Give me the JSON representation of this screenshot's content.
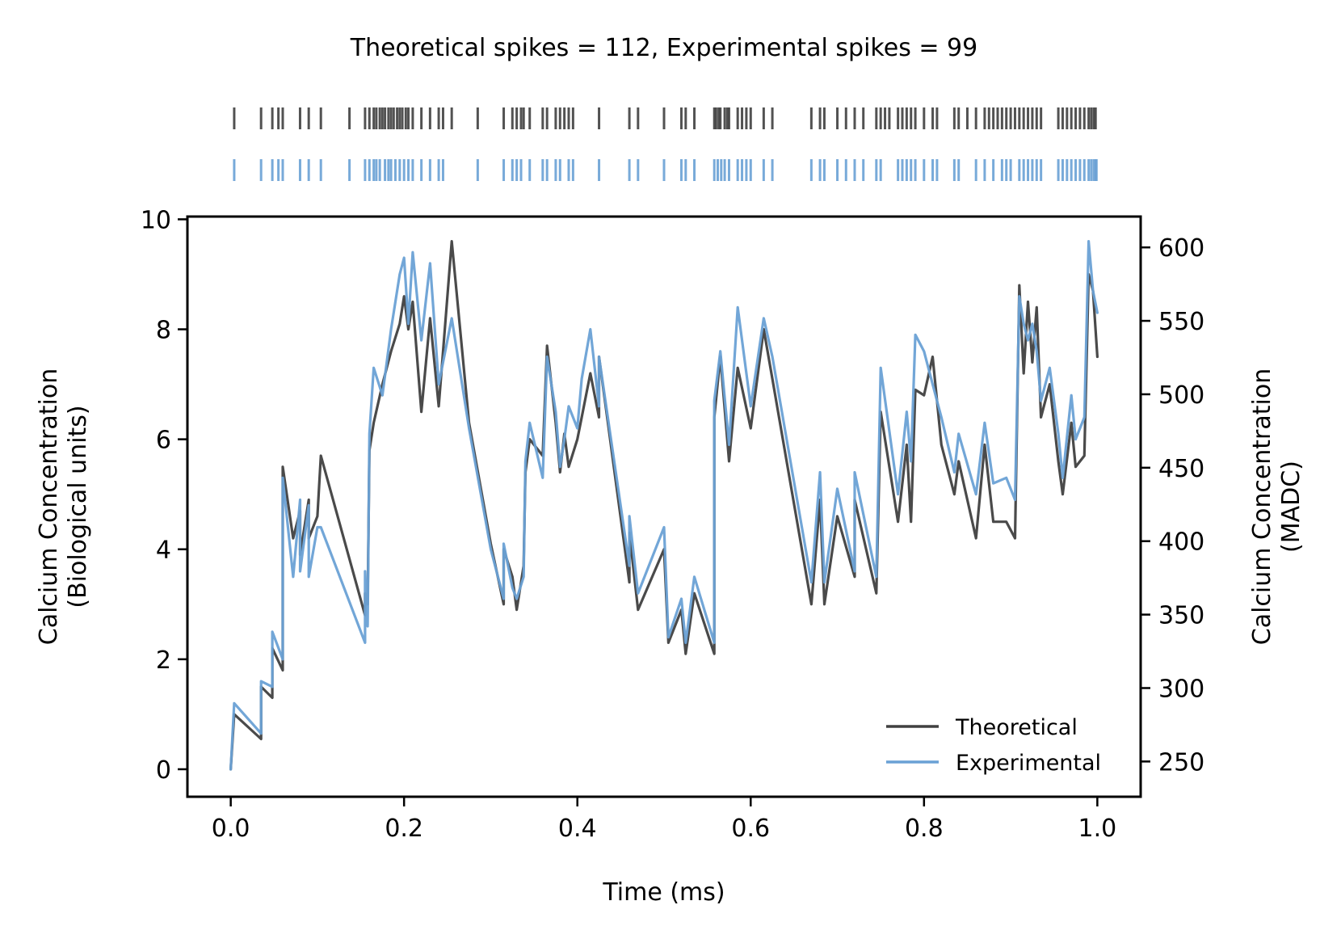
{
  "chart_data": {
    "type": "line",
    "title": "Theoretical spikes = 112, Experimental spikes = 99",
    "xlabel": "Time (ms)",
    "ylabel": [
      "Calcium Concentration",
      "(Biological units)"
    ],
    "ylabel_right": [
      "Calcium Concentration",
      "(MADC)"
    ],
    "xlim": [
      -0.05,
      1.05
    ],
    "ylim": [
      -0.5,
      10.05
    ],
    "ylim_right": [
      226,
      621
    ],
    "xticks": [
      0.0,
      0.2,
      0.4,
      0.6,
      0.8,
      1.0
    ],
    "xtick_labels": [
      "0.0",
      "0.2",
      "0.4",
      "0.6",
      "0.8",
      "1.0"
    ],
    "yticks": [
      0,
      2,
      4,
      6,
      8,
      10
    ],
    "ytick_labels": [
      "0",
      "2",
      "4",
      "6",
      "8",
      "10"
    ],
    "yticks_right": [
      250,
      300,
      350,
      400,
      450,
      500,
      550,
      600
    ],
    "ytick_labels_right": [
      "250",
      "300",
      "350",
      "400",
      "450",
      "500",
      "550",
      "600"
    ],
    "legend_placement": "lower-right",
    "series": [
      {
        "name": "Theoretical",
        "color": "#404040",
        "x": [
          0.0,
          0.004,
          0.035,
          0.035,
          0.048,
          0.048,
          0.06,
          0.06,
          0.072,
          0.08,
          0.08,
          0.09,
          0.09,
          0.1,
          0.104,
          0.104,
          0.155,
          0.155,
          0.158,
          0.16,
          0.165,
          0.175,
          0.185,
          0.195,
          0.2,
          0.205,
          0.21,
          0.22,
          0.23,
          0.24,
          0.255,
          0.255,
          0.275,
          0.3,
          0.315,
          0.315,
          0.325,
          0.33,
          0.338,
          0.34,
          0.345,
          0.36,
          0.365,
          0.375,
          0.38,
          0.385,
          0.39,
          0.4,
          0.405,
          0.415,
          0.425,
          0.425,
          0.46,
          0.46,
          0.47,
          0.5,
          0.505,
          0.52,
          0.525,
          0.535,
          0.558,
          0.558,
          0.565,
          0.575,
          0.585,
          0.6,
          0.615,
          0.625,
          0.67,
          0.68,
          0.685,
          0.7,
          0.72,
          0.72,
          0.745,
          0.75,
          0.77,
          0.78,
          0.785,
          0.79,
          0.8,
          0.81,
          0.82,
          0.835,
          0.84,
          0.86,
          0.87,
          0.88,
          0.895,
          0.905,
          0.91,
          0.915,
          0.92,
          0.925,
          0.93,
          0.935,
          0.945,
          0.955,
          0.96,
          0.97,
          0.975,
          0.985,
          0.99,
          0.995,
          1.0
        ],
        "values": [
          0.0,
          1.0,
          0.55,
          1.5,
          1.3,
          2.2,
          1.8,
          5.5,
          4.2,
          4.7,
          3.9,
          4.9,
          4.2,
          4.6,
          5.7,
          5.7,
          2.8,
          3.2,
          3.0,
          5.8,
          6.3,
          7.0,
          7.6,
          8.1,
          8.6,
          8.0,
          8.5,
          6.5,
          8.2,
          6.6,
          9.6,
          9.6,
          6.3,
          4.1,
          3.0,
          4.0,
          3.5,
          2.9,
          3.7,
          5.4,
          6.0,
          5.7,
          7.7,
          6.3,
          5.4,
          6.1,
          5.5,
          6.0,
          6.4,
          7.2,
          6.4,
          7.5,
          3.4,
          4.3,
          2.9,
          4.0,
          2.3,
          2.9,
          2.1,
          3.2,
          2.1,
          6.4,
          7.5,
          5.6,
          7.3,
          6.2,
          8.0,
          7.1,
          3.0,
          4.9,
          3.0,
          4.6,
          3.5,
          4.9,
          3.2,
          6.5,
          4.5,
          5.9,
          4.5,
          6.9,
          6.8,
          7.5,
          5.9,
          5.0,
          5.6,
          4.2,
          5.9,
          4.5,
          4.5,
          4.2,
          8.8,
          7.2,
          8.5,
          7.4,
          8.4,
          6.4,
          7.0,
          5.6,
          5.0,
          6.3,
          5.5,
          5.7,
          9.0,
          8.7,
          7.5
        ]
      },
      {
        "name": "Experimental",
        "color": "#6aa1d5",
        "x": [
          0.0,
          0.004,
          0.035,
          0.035,
          0.048,
          0.048,
          0.06,
          0.06,
          0.072,
          0.08,
          0.08,
          0.09,
          0.09,
          0.1,
          0.104,
          0.104,
          0.155,
          0.155,
          0.158,
          0.16,
          0.165,
          0.175,
          0.185,
          0.195,
          0.2,
          0.205,
          0.21,
          0.22,
          0.23,
          0.24,
          0.255,
          0.255,
          0.275,
          0.3,
          0.315,
          0.315,
          0.325,
          0.33,
          0.338,
          0.34,
          0.345,
          0.36,
          0.365,
          0.375,
          0.38,
          0.385,
          0.39,
          0.4,
          0.405,
          0.415,
          0.425,
          0.425,
          0.46,
          0.46,
          0.47,
          0.5,
          0.505,
          0.52,
          0.525,
          0.535,
          0.558,
          0.558,
          0.565,
          0.575,
          0.585,
          0.6,
          0.615,
          0.625,
          0.67,
          0.68,
          0.685,
          0.7,
          0.72,
          0.72,
          0.745,
          0.75,
          0.77,
          0.78,
          0.785,
          0.79,
          0.8,
          0.81,
          0.82,
          0.835,
          0.84,
          0.86,
          0.87,
          0.88,
          0.895,
          0.905,
          0.91,
          0.915,
          0.92,
          0.925,
          0.93,
          0.935,
          0.945,
          0.955,
          0.96,
          0.97,
          0.975,
          0.985,
          0.99,
          0.995,
          1.0
        ],
        "values": [
          0.0,
          1.2,
          0.65,
          1.6,
          1.5,
          2.5,
          2.0,
          5.3,
          3.5,
          4.9,
          3.6,
          4.8,
          3.5,
          4.4,
          4.4,
          4.4,
          2.3,
          3.6,
          2.6,
          6.1,
          7.3,
          6.8,
          8.0,
          9.0,
          9.3,
          8.1,
          9.4,
          7.8,
          9.2,
          7.0,
          8.2,
          8.2,
          6.2,
          4.0,
          3.1,
          4.1,
          3.3,
          3.1,
          3.5,
          5.6,
          6.3,
          5.3,
          7.5,
          6.5,
          5.5,
          6.0,
          6.6,
          6.2,
          7.1,
          8.0,
          6.6,
          7.5,
          3.7,
          4.6,
          3.2,
          4.4,
          2.4,
          3.1,
          2.3,
          3.5,
          2.3,
          6.7,
          7.6,
          5.9,
          8.4,
          6.6,
          8.2,
          7.5,
          3.4,
          5.4,
          3.4,
          5.1,
          3.6,
          5.4,
          3.5,
          7.3,
          5.0,
          6.5,
          5.6,
          7.9,
          7.6,
          7.0,
          6.4,
          5.4,
          6.1,
          5.0,
          6.3,
          5.2,
          5.3,
          4.9,
          8.6,
          8.1,
          7.8,
          8.1,
          7.6,
          6.7,
          7.3,
          6.1,
          5.3,
          6.8,
          6.0,
          6.4,
          9.6,
          8.7,
          8.3
        ]
      }
    ],
    "raster": {
      "rows": [
        {
          "name": "Theoretical spikes",
          "color": "#404040",
          "times": [
            0.004,
            0.035,
            0.048,
            0.055,
            0.06,
            0.08,
            0.09,
            0.104,
            0.137,
            0.155,
            0.16,
            0.165,
            0.168,
            0.172,
            0.175,
            0.178,
            0.182,
            0.185,
            0.188,
            0.192,
            0.195,
            0.198,
            0.202,
            0.205,
            0.21,
            0.22,
            0.23,
            0.24,
            0.245,
            0.255,
            0.285,
            0.315,
            0.325,
            0.33,
            0.335,
            0.338,
            0.345,
            0.36,
            0.365,
            0.375,
            0.38,
            0.385,
            0.39,
            0.395,
            0.425,
            0.46,
            0.47,
            0.5,
            0.52,
            0.525,
            0.535,
            0.558,
            0.56,
            0.563,
            0.565,
            0.57,
            0.573,
            0.575,
            0.585,
            0.59,
            0.595,
            0.6,
            0.615,
            0.625,
            0.67,
            0.68,
            0.685,
            0.7,
            0.71,
            0.72,
            0.73,
            0.745,
            0.75,
            0.755,
            0.76,
            0.77,
            0.775,
            0.78,
            0.785,
            0.79,
            0.8,
            0.81,
            0.815,
            0.835,
            0.84,
            0.85,
            0.86,
            0.87,
            0.875,
            0.88,
            0.885,
            0.89,
            0.895,
            0.9,
            0.905,
            0.91,
            0.915,
            0.92,
            0.925,
            0.93,
            0.935,
            0.955,
            0.96,
            0.965,
            0.97,
            0.975,
            0.98,
            0.985,
            0.99,
            0.993,
            0.996,
            0.998
          ]
        },
        {
          "name": "Experimental spikes",
          "color": "#6aa1d5",
          "times": [
            0.004,
            0.035,
            0.048,
            0.055,
            0.06,
            0.08,
            0.09,
            0.104,
            0.137,
            0.155,
            0.16,
            0.165,
            0.168,
            0.172,
            0.178,
            0.182,
            0.185,
            0.19,
            0.195,
            0.2,
            0.205,
            0.21,
            0.22,
            0.23,
            0.24,
            0.245,
            0.285,
            0.315,
            0.325,
            0.33,
            0.335,
            0.345,
            0.36,
            0.365,
            0.375,
            0.38,
            0.39,
            0.395,
            0.425,
            0.46,
            0.47,
            0.5,
            0.52,
            0.525,
            0.535,
            0.558,
            0.562,
            0.566,
            0.57,
            0.575,
            0.585,
            0.59,
            0.595,
            0.6,
            0.615,
            0.625,
            0.67,
            0.68,
            0.685,
            0.7,
            0.71,
            0.72,
            0.73,
            0.745,
            0.75,
            0.77,
            0.775,
            0.78,
            0.785,
            0.79,
            0.8,
            0.81,
            0.815,
            0.835,
            0.84,
            0.86,
            0.87,
            0.88,
            0.89,
            0.895,
            0.9,
            0.91,
            0.915,
            0.92,
            0.925,
            0.93,
            0.935,
            0.955,
            0.96,
            0.965,
            0.97,
            0.975,
            0.98,
            0.985,
            0.99,
            0.993,
            0.996,
            0.998,
            0.999
          ]
        }
      ]
    }
  }
}
